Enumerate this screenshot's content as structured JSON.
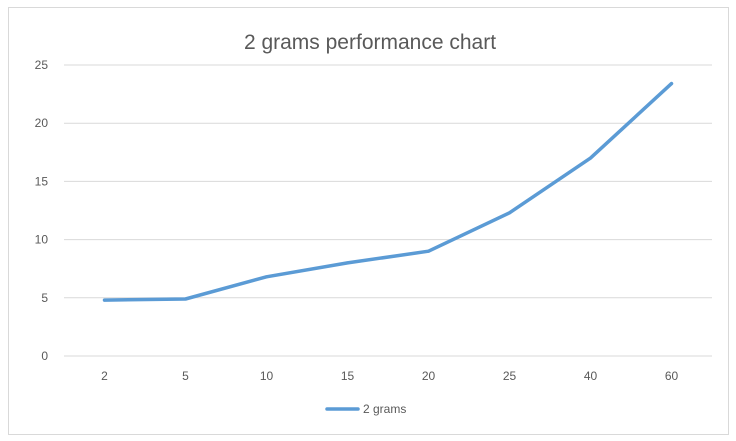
{
  "chart_data": {
    "type": "line",
    "title": "2 grams performance chart",
    "xlabel": "",
    "ylabel": "",
    "categories": [
      "2",
      "5",
      "10",
      "15",
      "20",
      "25",
      "40",
      "60"
    ],
    "series": [
      {
        "name": "2 grams",
        "values": [
          4.8,
          4.9,
          6.8,
          8.0,
          9.0,
          12.3,
          17.0,
          23.4
        ],
        "color": "#5b9bd5"
      }
    ],
    "ylim": [
      0,
      25
    ],
    "yticks": [
      "0",
      "5",
      "10",
      "15",
      "20",
      "25"
    ],
    "grid": true,
    "legend_position": "bottom"
  }
}
